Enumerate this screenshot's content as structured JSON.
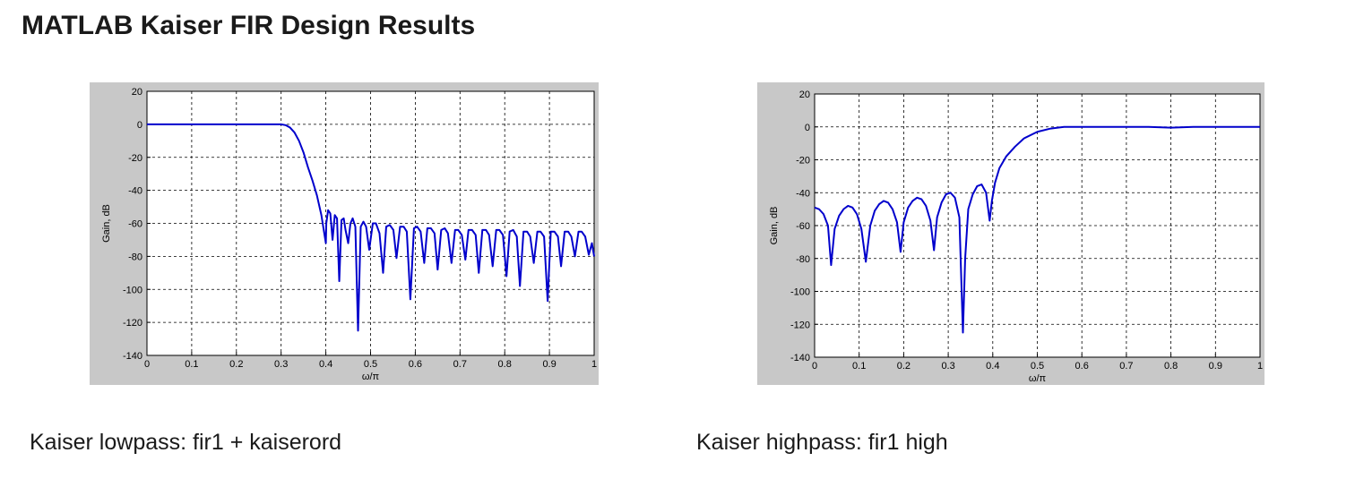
{
  "page": {
    "title": "MATLAB Kaiser FIR Design Results"
  },
  "colors": {
    "curve": "#0000cc",
    "figure_background": "#c8c8c8",
    "grid": "#000000"
  },
  "chart_data": [
    {
      "type": "line",
      "caption": "Kaiser lowpass: fir1 + kaiserord",
      "xlabel": "ω/π",
      "ylabel": "Gain, dB",
      "xlim": [
        0,
        1
      ],
      "ylim": [
        -140,
        20
      ],
      "xticks": [
        0,
        0.1,
        0.2,
        0.3,
        0.4,
        0.5,
        0.6,
        0.7,
        0.8,
        0.9,
        1
      ],
      "xtick_labels": [
        "0",
        "0.1",
        "0.2",
        "0.3",
        "0.4",
        "0.5",
        "0.6",
        "0.7",
        "0.8",
        "0.9",
        "1"
      ],
      "yticks": [
        20,
        0,
        -20,
        -40,
        -60,
        -80,
        -100,
        -120,
        -140
      ],
      "ytick_labels": [
        "20",
        "0",
        "-20",
        "-40",
        "-60",
        "-80",
        "-100",
        "-120",
        "-140"
      ],
      "grid": true,
      "series": [
        {
          "x": [
            0,
            0.1,
            0.2,
            0.3,
            0.31,
            0.32,
            0.33,
            0.34,
            0.35,
            0.36,
            0.37,
            0.38,
            0.39,
            0.4,
            0.401,
            0.405,
            0.41,
            0.415,
            0.42,
            0.425,
            0.43,
            0.435,
            0.44,
            0.444,
            0.45,
            0.455,
            0.46,
            0.466,
            0.472,
            0.478,
            0.484,
            0.49,
            0.497,
            0.505,
            0.512,
            0.52,
            0.528,
            0.535,
            0.543,
            0.551,
            0.558,
            0.566,
            0.574,
            0.581,
            0.589,
            0.597,
            0.604,
            0.612,
            0.62,
            0.627,
            0.635,
            0.643,
            0.65,
            0.658,
            0.666,
            0.673,
            0.681,
            0.689,
            0.696,
            0.704,
            0.712,
            0.719,
            0.727,
            0.735,
            0.742,
            0.75,
            0.758,
            0.765,
            0.773,
            0.781,
            0.788,
            0.796,
            0.804,
            0.811,
            0.819,
            0.827,
            0.834,
            0.842,
            0.85,
            0.857,
            0.865,
            0.873,
            0.88,
            0.888,
            0.896,
            0.903,
            0.911,
            0.919,
            0.926,
            0.934,
            0.942,
            0.949,
            0.957,
            0.965,
            0.972,
            0.98,
            0.988,
            0.995,
            1
          ],
          "y": [
            0,
            0,
            0,
            0,
            -0.5,
            -2,
            -5,
            -10,
            -17,
            -26,
            -34,
            -43,
            -55,
            -72,
            -60,
            -52,
            -54,
            -70,
            -55,
            -57,
            -95,
            -58,
            -57,
            -64,
            -72,
            -60,
            -57,
            -62,
            -125,
            -62,
            -59,
            -62,
            -76,
            -60,
            -60,
            -66,
            -90,
            -62,
            -61,
            -64,
            -81,
            -62,
            -62,
            -65,
            -106,
            -63,
            -62,
            -65,
            -84,
            -63,
            -63,
            -66,
            -88,
            -64,
            -63,
            -66,
            -84,
            -64,
            -64,
            -67,
            -82,
            -64,
            -64,
            -67,
            -90,
            -64,
            -64,
            -67,
            -86,
            -64,
            -64,
            -67,
            -92,
            -65,
            -64,
            -68,
            -98,
            -65,
            -65,
            -68,
            -84,
            -65,
            -65,
            -68,
            -107,
            -65,
            -65,
            -68,
            -86,
            -65,
            -65,
            -68,
            -80,
            -65,
            -65,
            -68,
            -79,
            -72,
            -80
          ]
        }
      ]
    },
    {
      "type": "line",
      "caption": "Kaiser highpass: fir1 high",
      "xlabel": "ω/π",
      "ylabel": "Gain, dB",
      "xlim": [
        0,
        1
      ],
      "ylim": [
        -140,
        20
      ],
      "xticks": [
        0,
        0.1,
        0.2,
        0.3,
        0.4,
        0.5,
        0.6,
        0.7,
        0.8,
        0.9,
        1
      ],
      "xtick_labels": [
        "0",
        "0.1",
        "0.2",
        "0.3",
        "0.4",
        "0.5",
        "0.6",
        "0.7",
        "0.8",
        "0.9",
        "1"
      ],
      "yticks": [
        20,
        0,
        -20,
        -40,
        -60,
        -80,
        -100,
        -120,
        -140
      ],
      "ytick_labels": [
        "20",
        "0",
        "-20",
        "-40",
        "-60",
        "-80",
        "-100",
        "-120",
        "-140"
      ],
      "grid": true,
      "series": [
        {
          "x": [
            0,
            0.01,
            0.02,
            0.03,
            0.037,
            0.045,
            0.055,
            0.065,
            0.075,
            0.085,
            0.095,
            0.105,
            0.115,
            0.125,
            0.135,
            0.145,
            0.155,
            0.165,
            0.175,
            0.185,
            0.193,
            0.2,
            0.21,
            0.22,
            0.23,
            0.24,
            0.25,
            0.26,
            0.268,
            0.275,
            0.285,
            0.295,
            0.305,
            0.315,
            0.325,
            0.333,
            0.338,
            0.345,
            0.355,
            0.365,
            0.375,
            0.385,
            0.393,
            0.398,
            0.405,
            0.415,
            0.43,
            0.45,
            0.47,
            0.5,
            0.53,
            0.56,
            0.6,
            0.65,
            0.7,
            0.75,
            0.8,
            0.85,
            0.9,
            0.95,
            1
          ],
          "y": [
            -49,
            -50,
            -53,
            -60,
            -84,
            -62,
            -54,
            -50,
            -48,
            -49,
            -53,
            -62,
            -82,
            -60,
            -51,
            -47,
            -45,
            -46,
            -50,
            -58,
            -76,
            -58,
            -49,
            -45,
            -43,
            -44,
            -48,
            -57,
            -75,
            -55,
            -46,
            -41,
            -40,
            -43,
            -55,
            -125,
            -80,
            -50,
            -41,
            -36,
            -35,
            -40,
            -57,
            -45,
            -34,
            -25,
            -18,
            -12,
            -7,
            -3,
            -1,
            0,
            0,
            0,
            0,
            0,
            -0.5,
            0,
            0,
            0,
            0
          ]
        }
      ]
    }
  ]
}
